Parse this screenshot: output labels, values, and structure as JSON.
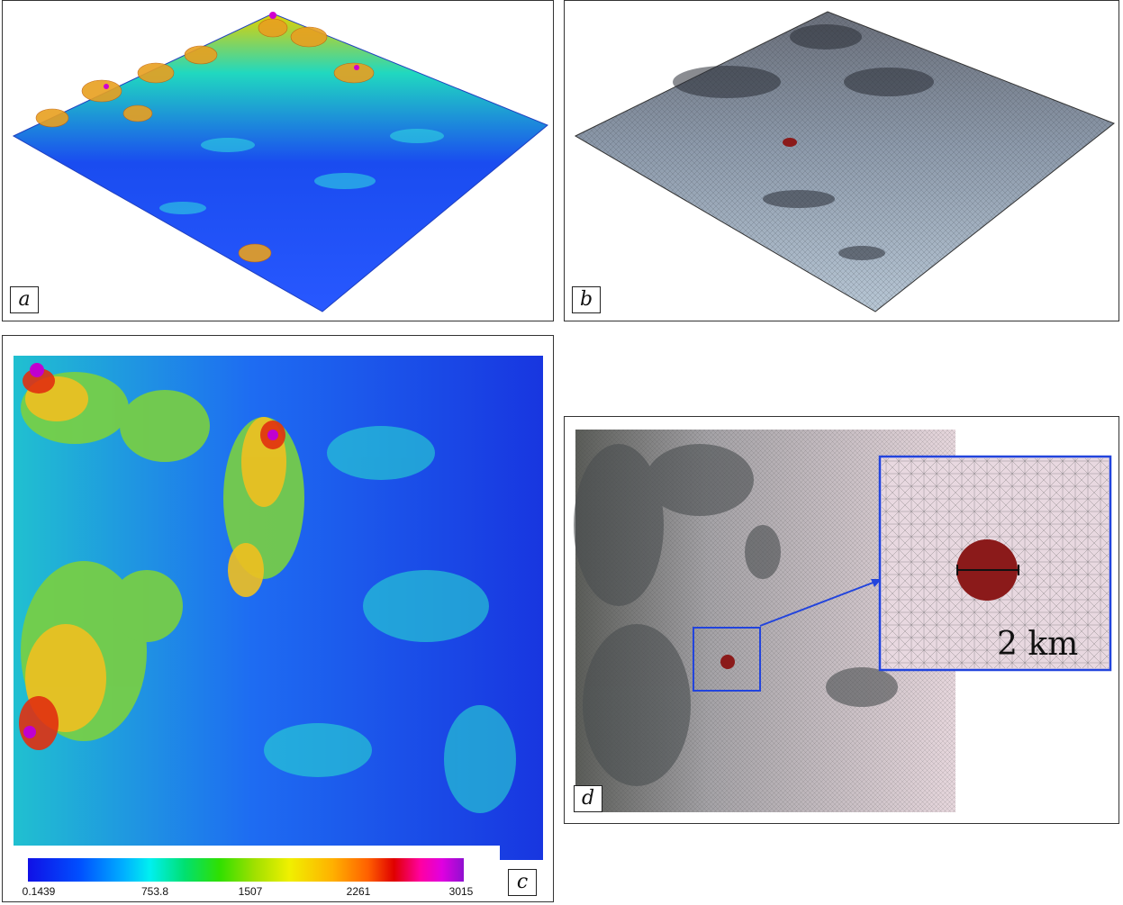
{
  "panels": {
    "a": {
      "label": "a"
    },
    "b": {
      "label": "b"
    },
    "c": {
      "label": "c"
    },
    "d": {
      "label": "d",
      "zoom_label": "2 km"
    }
  },
  "colorbar": {
    "ticks": [
      "0.1439",
      "753.8",
      "1507",
      "2261",
      "3015"
    ],
    "min": 0.1439,
    "max": 3015
  },
  "colors": {
    "low": "#1010e6",
    "mid": "#f0f000",
    "high": "#9010d0",
    "sphere": "#8b1a1a",
    "zoom_box": "#2244dd"
  }
}
